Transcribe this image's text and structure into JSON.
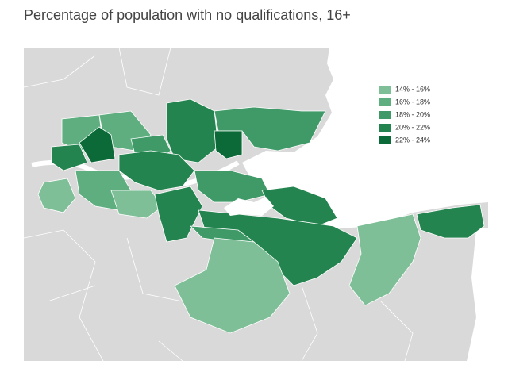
{
  "title": "Percentage of population with no qualifications, 16+",
  "legend": {
    "items": [
      {
        "label": "14% - 16%",
        "color": "#7fbf98"
      },
      {
        "label": "16% - 18%",
        "color": "#5fae80"
      },
      {
        "label": "18% - 20%",
        "color": "#3f9a68"
      },
      {
        "label": "20% - 22%",
        "color": "#24844f"
      },
      {
        "label": "22% - 24%",
        "color": "#0b6a37"
      }
    ]
  }
}
